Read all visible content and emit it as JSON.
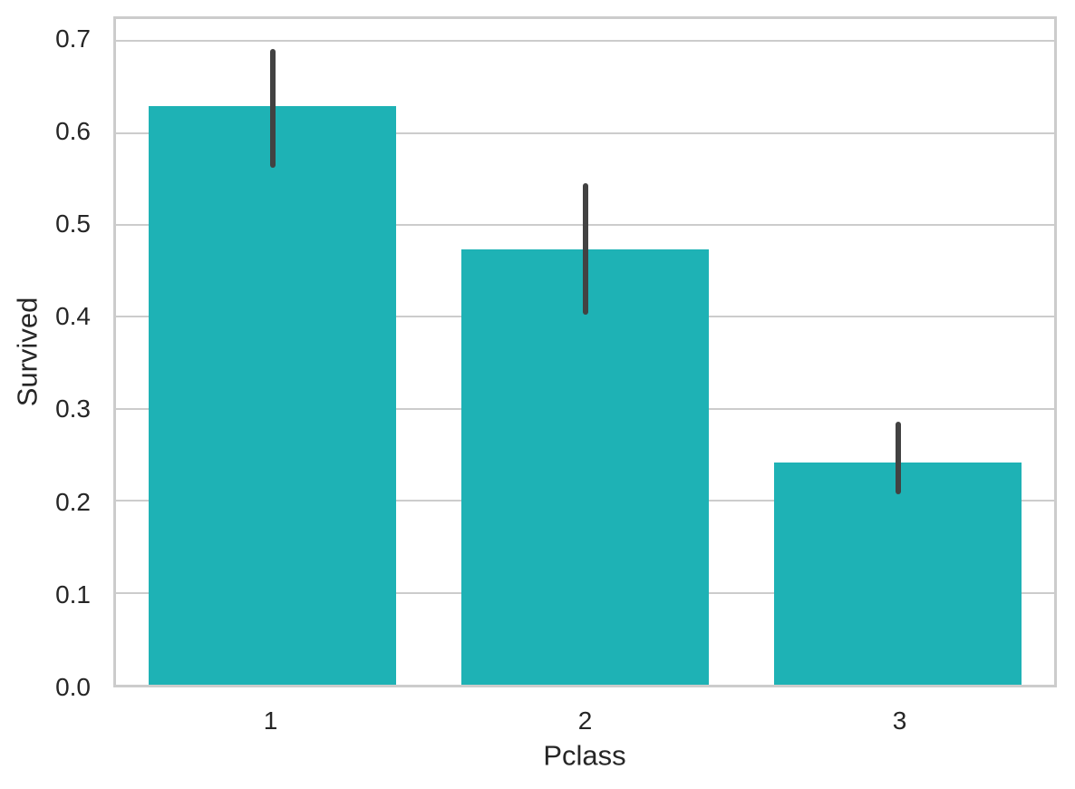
{
  "chart_data": {
    "type": "bar",
    "title": "",
    "xlabel": "Pclass",
    "ylabel": "Survived",
    "categories": [
      "1",
      "2",
      "3"
    ],
    "values": [
      0.629,
      0.473,
      0.242
    ],
    "error_bars": {
      "low": [
        0.562,
        0.402,
        0.207
      ],
      "high": [
        0.691,
        0.545,
        0.286
      ]
    },
    "ylim": [
      0,
      0.724
    ],
    "yticks": [
      0,
      0.1,
      0.2,
      0.3,
      0.4,
      0.5,
      0.6,
      0.7
    ],
    "ytick_labels": [
      "0.0",
      "0.1",
      "0.2",
      "0.3",
      "0.4",
      "0.5",
      "0.6",
      "0.7"
    ],
    "grid": true,
    "legend_position": "none",
    "bar_width_fraction": 0.79,
    "colors": {
      "bar": "#1EB2B5",
      "error_bar": "#424242",
      "grid": "#CCCCCC",
      "spine": "#CCCCCC",
      "tick_text": "#262626",
      "background": "#FFFFFF"
    }
  }
}
